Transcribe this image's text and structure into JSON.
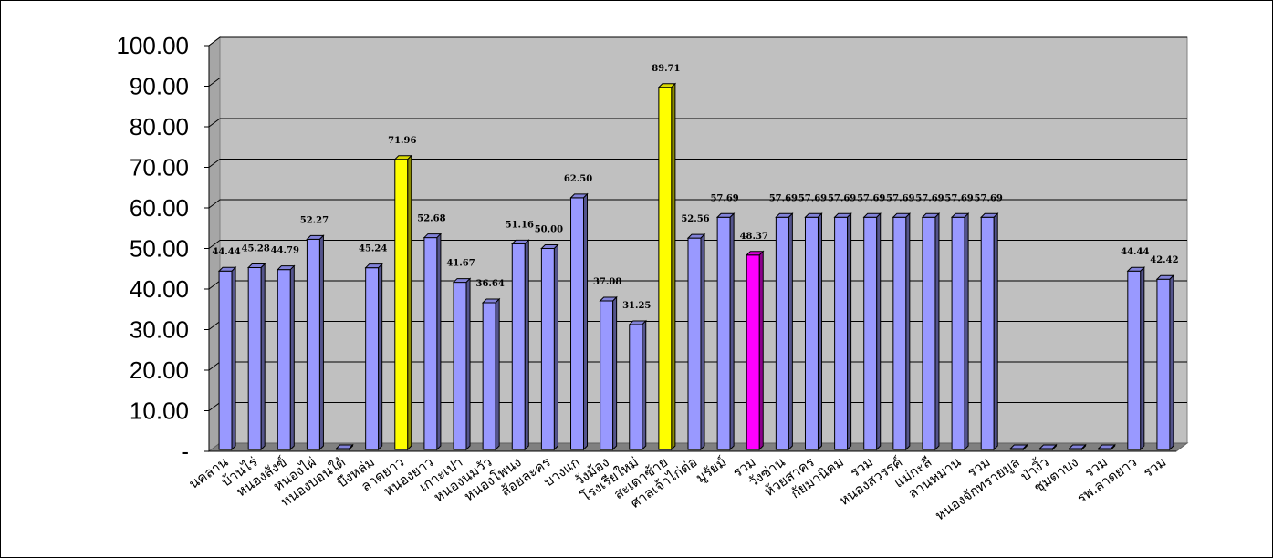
{
  "chart_data": {
    "type": "bar",
    "title": "",
    "xlabel": "",
    "ylabel": "",
    "ylim": [
      0,
      100
    ],
    "ytick_values": [
      0,
      10,
      20,
      30,
      40,
      50,
      60,
      70,
      80,
      90,
      100
    ],
    "ytick_labels": [
      "-",
      "10.00",
      "20.00",
      "30.00",
      "40.00",
      "50.00",
      "60.00",
      "70.00",
      "80.00",
      "90.00",
      "100.00"
    ],
    "grid": true,
    "legend": "none",
    "colors": {
      "default": "#9999ff",
      "highlight_yellow": "#ffff00",
      "highlight_magenta": "#ff00ff",
      "plot_wall": "#c0c0c0",
      "floor": "#808080"
    },
    "categories": [
      "นคลาน",
      "บ้านไร่",
      "หนองสังข์",
      "หนองไผ่",
      "หนองบอนใต้",
      "บึงหล่ม",
      "ลาดยาว",
      "หนองยาว",
      "เกาะเปา",
      "หนองนมวัว",
      "หนองโพนง",
      "ส้อยละคร",
      "บางแก",
      "วังม้อง",
      "โรงเรียใหม่",
      "สะเดาซ้าย",
      "ศาลเจ้าไก่ต่อ",
      "มูรัยม์",
      "รวม",
      "วังซ่าน",
      "ห้วยสาคร",
      "กัยมานิคม",
      "รวม",
      "หนองสวรรค์",
      "แม่กะลี",
      "ลานหมาน",
      "รวม",
      "หนองจักทรายมูล",
      "ป่างิ้ว",
      "ชุมตาบง",
      "รวม",
      "รพ.ลาดยาว",
      "รวม"
    ],
    "values": [
      44.44,
      45.28,
      44.79,
      52.27,
      0,
      45.24,
      71.96,
      52.68,
      41.67,
      36.64,
      51.16,
      50.0,
      62.5,
      37.08,
      31.25,
      89.71,
      52.56,
      57.69,
      48.37,
      57.69,
      57.69,
      57.69,
      57.69,
      57.69,
      57.69,
      57.69,
      57.69,
      0,
      0,
      0,
      0,
      44.44,
      42.42
    ],
    "value_labels": [
      "44.44",
      "45.28",
      "44.79",
      "52.27",
      "",
      "45.24",
      "71.96",
      "52.68",
      "41.67",
      "36.64",
      "51.16",
      "50.00",
      "62.50",
      "37.08",
      "31.25",
      "89.71",
      "52.56",
      "57.69",
      "48.37",
      "57.69",
      "57.69",
      "57.69",
      "57.69",
      "57.69",
      "57.69",
      "57.69",
      "57.69",
      "",
      "",
      "",
      "",
      "44.44",
      "42.42"
    ],
    "bar_colors": [
      "#9999ff",
      "#9999ff",
      "#9999ff",
      "#9999ff",
      "#9999ff",
      "#9999ff",
      "#ffff00",
      "#9999ff",
      "#9999ff",
      "#9999ff",
      "#9999ff",
      "#9999ff",
      "#9999ff",
      "#9999ff",
      "#9999ff",
      "#ffff00",
      "#9999ff",
      "#9999ff",
      "#ff00ff",
      "#9999ff",
      "#9999ff",
      "#9999ff",
      "#9999ff",
      "#9999ff",
      "#9999ff",
      "#9999ff",
      "#9999ff",
      "#9999ff",
      "#9999ff",
      "#9999ff",
      "#9999ff",
      "#9999ff",
      "#9999ff"
    ]
  }
}
